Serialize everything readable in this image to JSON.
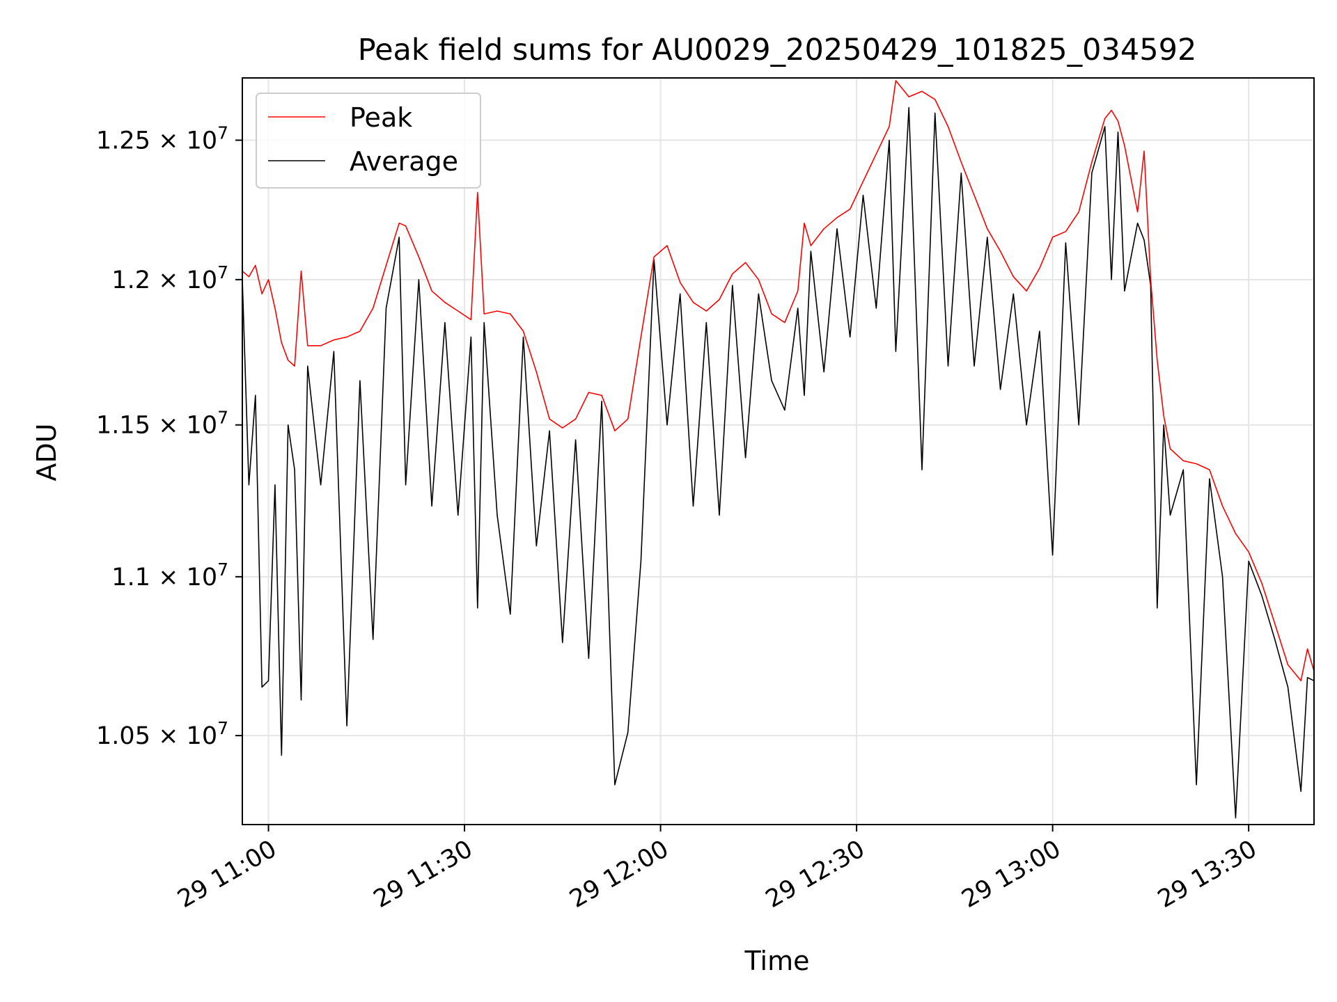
{
  "chart_data": {
    "type": "line",
    "title": "Peak field sums for AU0029_20250429_101825_034592",
    "xlabel": "Time",
    "ylabel": "ADU",
    "x_axis_type": "time",
    "xlim": [
      "2025-04-29 10:56",
      "2025-04-29 13:40"
    ],
    "ylim": [
      10230000,
      12730000
    ],
    "y_scale": "log",
    "grid": true,
    "legend_position": "top-left",
    "x_ticks": [
      {
        "time": "2025-04-29 11:00",
        "label": "29 11:00"
      },
      {
        "time": "2025-04-29 11:30",
        "label": "29 11:30"
      },
      {
        "time": "2025-04-29 12:00",
        "label": "29 12:00"
      },
      {
        "time": "2025-04-29 12:30",
        "label": "29 12:30"
      },
      {
        "time": "2025-04-29 13:00",
        "label": "29 13:00"
      },
      {
        "time": "2025-04-29 13:30",
        "label": "29 13:30"
      }
    ],
    "y_ticks": [
      {
        "value": 10500000,
        "mantissa": "1.05",
        "base": "10",
        "exp": "7"
      },
      {
        "value": 11000000,
        "mantissa": "1.1",
        "base": "10",
        "exp": "7"
      },
      {
        "value": 11500000,
        "mantissa": "1.15",
        "base": "10",
        "exp": "7"
      },
      {
        "value": 12000000,
        "mantissa": "1.2",
        "base": "10",
        "exp": "7"
      },
      {
        "value": 12500000,
        "mantissa": "1.25",
        "base": "10",
        "exp": "7"
      }
    ],
    "series": [
      {
        "name": "Peak",
        "color": "#ff0000",
        "points": [
          [
            "2025-04-29 10:56",
            12030000
          ],
          [
            "2025-04-29 10:57",
            12010000
          ],
          [
            "2025-04-29 10:58",
            12050000
          ],
          [
            "2025-04-29 10:59",
            11950000
          ],
          [
            "2025-04-29 11:00",
            12000000
          ],
          [
            "2025-04-29 11:01",
            11900000
          ],
          [
            "2025-04-29 11:02",
            11780000
          ],
          [
            "2025-04-29 11:03",
            11720000
          ],
          [
            "2025-04-29 11:04",
            11700000
          ],
          [
            "2025-04-29 11:05",
            12030000
          ],
          [
            "2025-04-29 11:06",
            11770000
          ],
          [
            "2025-04-29 11:08",
            11770000
          ],
          [
            "2025-04-29 11:10",
            11790000
          ],
          [
            "2025-04-29 11:12",
            11800000
          ],
          [
            "2025-04-29 11:14",
            11820000
          ],
          [
            "2025-04-29 11:16",
            11900000
          ],
          [
            "2025-04-29 11:18",
            12050000
          ],
          [
            "2025-04-29 11:20",
            12200000
          ],
          [
            "2025-04-29 11:21",
            12190000
          ],
          [
            "2025-04-29 11:23",
            12080000
          ],
          [
            "2025-04-29 11:25",
            11960000
          ],
          [
            "2025-04-29 11:27",
            11920000
          ],
          [
            "2025-04-29 11:29",
            11890000
          ],
          [
            "2025-04-29 11:31",
            11860000
          ],
          [
            "2025-04-29 11:32",
            12310000
          ],
          [
            "2025-04-29 11:33",
            11880000
          ],
          [
            "2025-04-29 11:35",
            11890000
          ],
          [
            "2025-04-29 11:37",
            11880000
          ],
          [
            "2025-04-29 11:39",
            11820000
          ],
          [
            "2025-04-29 11:41",
            11680000
          ],
          [
            "2025-04-29 11:43",
            11520000
          ],
          [
            "2025-04-29 11:45",
            11490000
          ],
          [
            "2025-04-29 11:47",
            11520000
          ],
          [
            "2025-04-29 11:49",
            11610000
          ],
          [
            "2025-04-29 11:51",
            11600000
          ],
          [
            "2025-04-29 11:53",
            11480000
          ],
          [
            "2025-04-29 11:55",
            11520000
          ],
          [
            "2025-04-29 11:57",
            11800000
          ],
          [
            "2025-04-29 11:59",
            12080000
          ],
          [
            "2025-04-29 12:01",
            12120000
          ],
          [
            "2025-04-29 12:03",
            11990000
          ],
          [
            "2025-04-29 12:05",
            11920000
          ],
          [
            "2025-04-29 12:07",
            11890000
          ],
          [
            "2025-04-29 12:09",
            11930000
          ],
          [
            "2025-04-29 12:11",
            12020000
          ],
          [
            "2025-04-29 12:13",
            12060000
          ],
          [
            "2025-04-29 12:15",
            12000000
          ],
          [
            "2025-04-29 12:17",
            11880000
          ],
          [
            "2025-04-29 12:19",
            11850000
          ],
          [
            "2025-04-29 12:21",
            11960000
          ],
          [
            "2025-04-29 12:22",
            12200000
          ],
          [
            "2025-04-29 12:23",
            12120000
          ],
          [
            "2025-04-29 12:25",
            12180000
          ],
          [
            "2025-04-29 12:27",
            12220000
          ],
          [
            "2025-04-29 12:29",
            12250000
          ],
          [
            "2025-04-29 12:31",
            12350000
          ],
          [
            "2025-04-29 12:33",
            12450000
          ],
          [
            "2025-04-29 12:35",
            12550000
          ],
          [
            "2025-04-29 12:36",
            12720000
          ],
          [
            "2025-04-29 12:38",
            12660000
          ],
          [
            "2025-04-29 12:40",
            12680000
          ],
          [
            "2025-04-29 12:42",
            12650000
          ],
          [
            "2025-04-29 12:44",
            12550000
          ],
          [
            "2025-04-29 12:46",
            12420000
          ],
          [
            "2025-04-29 12:48",
            12300000
          ],
          [
            "2025-04-29 12:50",
            12180000
          ],
          [
            "2025-04-29 12:52",
            12100000
          ],
          [
            "2025-04-29 12:54",
            12010000
          ],
          [
            "2025-04-29 12:56",
            11960000
          ],
          [
            "2025-04-29 12:58",
            12040000
          ],
          [
            "2025-04-29 13:00",
            12150000
          ],
          [
            "2025-04-29 13:02",
            12170000
          ],
          [
            "2025-04-29 13:04",
            12240000
          ],
          [
            "2025-04-29 13:06",
            12420000
          ],
          [
            "2025-04-29 13:08",
            12580000
          ],
          [
            "2025-04-29 13:09",
            12610000
          ],
          [
            "2025-04-29 13:10",
            12570000
          ],
          [
            "2025-04-29 13:11",
            12480000
          ],
          [
            "2025-04-29 13:13",
            12240000
          ],
          [
            "2025-04-29 13:14",
            12460000
          ],
          [
            "2025-04-29 13:15",
            12000000
          ],
          [
            "2025-04-29 13:16",
            11720000
          ],
          [
            "2025-04-29 13:17",
            11530000
          ],
          [
            "2025-04-29 13:18",
            11420000
          ],
          [
            "2025-04-29 13:20",
            11380000
          ],
          [
            "2025-04-29 13:22",
            11370000
          ],
          [
            "2025-04-29 13:24",
            11350000
          ],
          [
            "2025-04-29 13:26",
            11230000
          ],
          [
            "2025-04-29 13:28",
            11140000
          ],
          [
            "2025-04-29 13:30",
            11080000
          ],
          [
            "2025-04-29 13:32",
            10980000
          ],
          [
            "2025-04-29 13:34",
            10850000
          ],
          [
            "2025-04-29 13:36",
            10720000
          ],
          [
            "2025-04-29 13:38",
            10670000
          ],
          [
            "2025-04-29 13:39",
            10770000
          ],
          [
            "2025-04-29 13:40",
            10700000
          ]
        ]
      },
      {
        "name": "Average",
        "color": "#000000",
        "points": [
          [
            "2025-04-29 10:56",
            12000000
          ],
          [
            "2025-04-29 10:57",
            11300000
          ],
          [
            "2025-04-29 10:58",
            11600000
          ],
          [
            "2025-04-29 10:59",
            10650000
          ],
          [
            "2025-04-29 11:00",
            10670000
          ],
          [
            "2025-04-29 11:01",
            11300000
          ],
          [
            "2025-04-29 11:02",
            10440000
          ],
          [
            "2025-04-29 11:03",
            11500000
          ],
          [
            "2025-04-29 11:04",
            11350000
          ],
          [
            "2025-04-29 11:05",
            10610000
          ],
          [
            "2025-04-29 11:06",
            11700000
          ],
          [
            "2025-04-29 11:08",
            11300000
          ],
          [
            "2025-04-29 11:10",
            11750000
          ],
          [
            "2025-04-29 11:12",
            10530000
          ],
          [
            "2025-04-29 11:14",
            11650000
          ],
          [
            "2025-04-29 11:16",
            10800000
          ],
          [
            "2025-04-29 11:18",
            11900000
          ],
          [
            "2025-04-29 11:20",
            12150000
          ],
          [
            "2025-04-29 11:21",
            11300000
          ],
          [
            "2025-04-29 11:23",
            12000000
          ],
          [
            "2025-04-29 11:25",
            11230000
          ],
          [
            "2025-04-29 11:27",
            11850000
          ],
          [
            "2025-04-29 11:29",
            11200000
          ],
          [
            "2025-04-29 11:31",
            11800000
          ],
          [
            "2025-04-29 11:32",
            10900000
          ],
          [
            "2025-04-29 11:33",
            11850000
          ],
          [
            "2025-04-29 11:35",
            11200000
          ],
          [
            "2025-04-29 11:37",
            10880000
          ],
          [
            "2025-04-29 11:39",
            11800000
          ],
          [
            "2025-04-29 11:41",
            11100000
          ],
          [
            "2025-04-29 11:43",
            11480000
          ],
          [
            "2025-04-29 11:45",
            10790000
          ],
          [
            "2025-04-29 11:47",
            11450000
          ],
          [
            "2025-04-29 11:49",
            10740000
          ],
          [
            "2025-04-29 11:51",
            11580000
          ],
          [
            "2025-04-29 11:53",
            10350000
          ],
          [
            "2025-04-29 11:55",
            10510000
          ],
          [
            "2025-04-29 11:57",
            11050000
          ],
          [
            "2025-04-29 11:59",
            12070000
          ],
          [
            "2025-04-29 12:01",
            11500000
          ],
          [
            "2025-04-29 12:03",
            11950000
          ],
          [
            "2025-04-29 12:05",
            11230000
          ],
          [
            "2025-04-29 12:07",
            11850000
          ],
          [
            "2025-04-29 12:09",
            11200000
          ],
          [
            "2025-04-29 12:11",
            11980000
          ],
          [
            "2025-04-29 12:13",
            11390000
          ],
          [
            "2025-04-29 12:15",
            11950000
          ],
          [
            "2025-04-29 12:17",
            11650000
          ],
          [
            "2025-04-29 12:19",
            11550000
          ],
          [
            "2025-04-29 12:21",
            11900000
          ],
          [
            "2025-04-29 12:22",
            11600000
          ],
          [
            "2025-04-29 12:23",
            12100000
          ],
          [
            "2025-04-29 12:25",
            11680000
          ],
          [
            "2025-04-29 12:27",
            12180000
          ],
          [
            "2025-04-29 12:29",
            11800000
          ],
          [
            "2025-04-29 12:31",
            12300000
          ],
          [
            "2025-04-29 12:33",
            11900000
          ],
          [
            "2025-04-29 12:35",
            12500000
          ],
          [
            "2025-04-29 12:36",
            11750000
          ],
          [
            "2025-04-29 12:38",
            12620000
          ],
          [
            "2025-04-29 12:40",
            11350000
          ],
          [
            "2025-04-29 12:42",
            12600000
          ],
          [
            "2025-04-29 12:44",
            11700000
          ],
          [
            "2025-04-29 12:46",
            12380000
          ],
          [
            "2025-04-29 12:48",
            11700000
          ],
          [
            "2025-04-29 12:50",
            12150000
          ],
          [
            "2025-04-29 12:52",
            11620000
          ],
          [
            "2025-04-29 12:54",
            11950000
          ],
          [
            "2025-04-29 12:56",
            11500000
          ],
          [
            "2025-04-29 12:58",
            11820000
          ],
          [
            "2025-04-29 13:00",
            11070000
          ],
          [
            "2025-04-29 13:02",
            12130000
          ],
          [
            "2025-04-29 13:04",
            11500000
          ],
          [
            "2025-04-29 13:06",
            12380000
          ],
          [
            "2025-04-29 13:08",
            12550000
          ],
          [
            "2025-04-29 13:09",
            12000000
          ],
          [
            "2025-04-29 13:10",
            12530000
          ],
          [
            "2025-04-29 13:11",
            11960000
          ],
          [
            "2025-04-29 13:13",
            12200000
          ],
          [
            "2025-04-29 13:14",
            12140000
          ],
          [
            "2025-04-29 13:15",
            11980000
          ],
          [
            "2025-04-29 13:16",
            10900000
          ],
          [
            "2025-04-29 13:17",
            11500000
          ],
          [
            "2025-04-29 13:18",
            11200000
          ],
          [
            "2025-04-29 13:20",
            11350000
          ],
          [
            "2025-04-29 13:22",
            10350000
          ],
          [
            "2025-04-29 13:24",
            11320000
          ],
          [
            "2025-04-29 13:26",
            11000000
          ],
          [
            "2025-04-29 13:28",
            10250000
          ],
          [
            "2025-04-29 13:30",
            11050000
          ],
          [
            "2025-04-29 13:32",
            10940000
          ],
          [
            "2025-04-29 13:34",
            10800000
          ],
          [
            "2025-04-29 13:36",
            10650000
          ],
          [
            "2025-04-29 13:38",
            10330000
          ],
          [
            "2025-04-29 13:39",
            10680000
          ],
          [
            "2025-04-29 13:40",
            10670000
          ]
        ]
      }
    ]
  }
}
